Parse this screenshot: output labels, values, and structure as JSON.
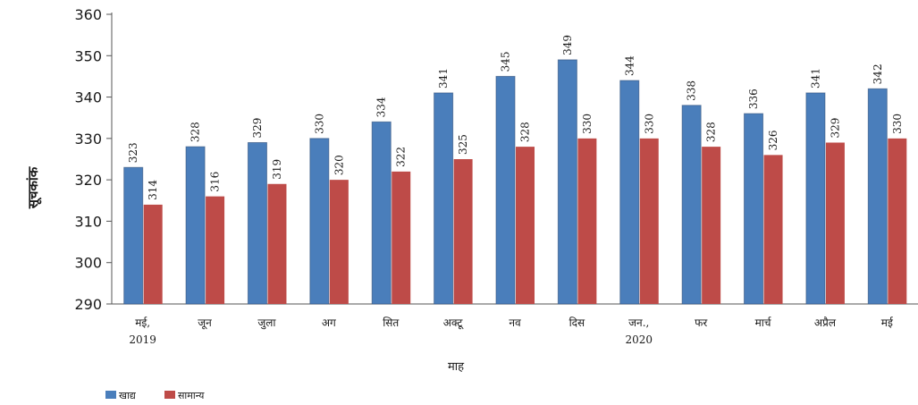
{
  "chart_data": {
    "type": "bar",
    "categories": [
      [
        "मई,",
        "2019"
      ],
      [
        "जून"
      ],
      [
        "जुला"
      ],
      [
        "अग"
      ],
      [
        "सित"
      ],
      [
        "अक्टू"
      ],
      [
        "नव"
      ],
      [
        "दिस"
      ],
      [
        "जन.,",
        "2020"
      ],
      [
        "फर"
      ],
      [
        "मार्च"
      ],
      [
        "अप्रैल"
      ],
      [
        "मई"
      ]
    ],
    "series": [
      {
        "name": "खाद्य",
        "color": "#4a7ebb",
        "values": [
          323,
          328,
          329,
          330,
          334,
          341,
          345,
          349,
          344,
          338,
          336,
          341,
          342
        ]
      },
      {
        "name": "सामान्य",
        "color": "#be4b48",
        "values": [
          314,
          316,
          319,
          320,
          322,
          325,
          328,
          330,
          330,
          328,
          326,
          329,
          330
        ]
      }
    ],
    "title": "",
    "xlabel": "माह",
    "ylabel": "सूचकांक",
    "ylim": [
      290,
      360
    ],
    "yticks": [
      290,
      300,
      310,
      320,
      330,
      340,
      350,
      360
    ],
    "grid": false,
    "legend": "bottom-left",
    "data_labels": true
  }
}
